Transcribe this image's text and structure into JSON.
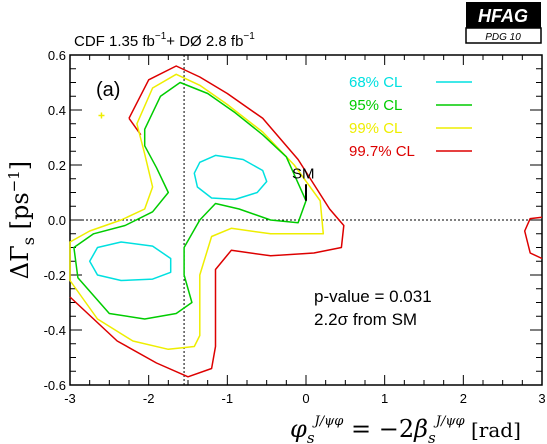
{
  "header": {
    "experiments_line": "CDF  1.35 fb",
    "exp1_sup": "−1",
    "exp2": "+ DØ  2.8 fb",
    "exp2_sup": "−1",
    "logo_title": "HFAG",
    "logo_subtitle": "PDG 10"
  },
  "chart_data": {
    "type": "contour",
    "panel_label": "(a)",
    "xlabel": "φ_s^{J/ψφ} = −2β_s^{J/ψφ} [rad]",
    "ylabel": "ΔΓ_s [ps^−1]",
    "xlim": [
      -3,
      3
    ],
    "ylim": [
      -0.6,
      0.6
    ],
    "xticks": [
      -3,
      -2,
      -1,
      0,
      1,
      2,
      3
    ],
    "xtick_labels": [
      "-3",
      "-2",
      "-1",
      "0",
      "1",
      "2",
      "3"
    ],
    "yticks": [
      -0.6,
      -0.4,
      -0.2,
      0.0,
      0.2,
      0.4,
      0.6
    ],
    "ytick_labels": [
      "-0.6",
      "-0.4",
      "-0.2",
      "0.0",
      "0.2",
      "0.4",
      "0.6"
    ],
    "reference_lines": {
      "x": -1.55,
      "y": 0.0
    },
    "best_fit_marker": {
      "x": -2.6,
      "y": 0.38
    },
    "standard_model": {
      "label": "SM",
      "x": 0.0,
      "y": 0.1,
      "err": 0.03
    },
    "annotation_pvalue": "p-value = 0.031",
    "annotation_sigma": "2.2σ   from SM",
    "legend_position": "top-right",
    "series": [
      {
        "name": "68% CL",
        "color": "#00e0e0",
        "contours": [
          [
            [
              -1.35,
              0.21
            ],
            [
              -1.15,
              0.235
            ],
            [
              -0.8,
              0.22
            ],
            [
              -0.55,
              0.18
            ],
            [
              -0.5,
              0.14
            ],
            [
              -0.62,
              0.1
            ],
            [
              -0.9,
              0.075
            ],
            [
              -1.2,
              0.08
            ],
            [
              -1.38,
              0.12
            ],
            [
              -1.42,
              0.17
            ]
          ],
          [
            [
              -2.75,
              -0.15
            ],
            [
              -2.65,
              -0.1
            ],
            [
              -2.35,
              -0.08
            ],
            [
              -1.95,
              -0.095
            ],
            [
              -1.72,
              -0.14
            ],
            [
              -1.72,
              -0.19
            ],
            [
              -1.95,
              -0.215
            ],
            [
              -2.35,
              -0.22
            ],
            [
              -2.65,
              -0.2
            ]
          ]
        ]
      },
      {
        "name": "95% CL",
        "color": "#00cc00",
        "contours": [
          [
            [
              -2.05,
              0.33
            ],
            [
              -1.85,
              0.45
            ],
            [
              -1.6,
              0.5
            ],
            [
              -1.25,
              0.46
            ],
            [
              -0.9,
              0.39
            ],
            [
              -0.55,
              0.31
            ],
            [
              -0.25,
              0.23
            ],
            [
              0.0,
              0.07
            ],
            [
              -0.1,
              -0.01
            ],
            [
              -0.45,
              0.0
            ],
            [
              -0.85,
              0.04
            ],
            [
              -1.15,
              0.06
            ],
            [
              -1.35,
              0.0
            ],
            [
              -1.55,
              -0.1
            ],
            [
              -1.55,
              -0.2
            ],
            [
              -1.45,
              -0.3
            ],
            [
              -1.65,
              -0.34
            ],
            [
              -2.05,
              -0.36
            ],
            [
              -2.5,
              -0.34
            ],
            [
              -2.9,
              -0.21
            ],
            [
              -2.95,
              -0.1
            ],
            [
              -2.7,
              -0.05
            ],
            [
              -2.3,
              -0.02
            ],
            [
              -1.95,
              0.03
            ],
            [
              -1.75,
              0.1
            ],
            [
              -1.9,
              0.19
            ],
            [
              -2.05,
              0.27
            ]
          ]
        ]
      },
      {
        "name": "99% CL",
        "color": "#eeee00",
        "contours": [
          [
            [
              -2.15,
              0.35
            ],
            [
              -1.95,
              0.48
            ],
            [
              -1.65,
              0.53
            ],
            [
              -1.35,
              0.49
            ],
            [
              -1.0,
              0.42
            ],
            [
              -0.55,
              0.32
            ],
            [
              -0.15,
              0.2
            ],
            [
              0.18,
              0.07
            ],
            [
              0.22,
              -0.05
            ],
            [
              0.05,
              -0.05
            ],
            [
              -0.45,
              -0.05
            ],
            [
              -0.95,
              -0.03
            ],
            [
              -1.2,
              -0.06
            ],
            [
              -1.35,
              -0.2
            ],
            [
              -1.35,
              -0.42
            ],
            [
              -1.42,
              -0.46
            ],
            [
              -1.75,
              -0.47
            ],
            [
              -2.2,
              -0.44
            ],
            [
              -2.65,
              -0.36
            ],
            [
              -3.0,
              -0.22
            ],
            [
              -3.0,
              -0.08
            ],
            [
              -2.75,
              -0.04
            ],
            [
              -2.35,
              0.0
            ],
            [
              -2.05,
              0.04
            ],
            [
              -1.95,
              0.12
            ],
            [
              -2.05,
              0.24
            ]
          ]
        ]
      },
      {
        "name": "99.7% CL",
        "color": "#dd0000",
        "contours": [
          [
            [
              -2.25,
              0.37
            ],
            [
              -2.0,
              0.51
            ],
            [
              -1.65,
              0.56
            ],
            [
              -1.35,
              0.52
            ],
            [
              -1.0,
              0.46
            ],
            [
              -0.55,
              0.37
            ],
            [
              -0.1,
              0.22
            ],
            [
              0.3,
              0.04
            ],
            [
              0.48,
              -0.02
            ],
            [
              0.45,
              -0.1
            ],
            [
              0.1,
              -0.12
            ],
            [
              -0.45,
              -0.13
            ],
            [
              -0.95,
              -0.11
            ],
            [
              -1.15,
              -0.18
            ],
            [
              -1.15,
              -0.46
            ],
            [
              -1.2,
              -0.54
            ],
            [
              -1.5,
              -0.57
            ],
            [
              -1.9,
              -0.52
            ],
            [
              -2.4,
              -0.44
            ],
            [
              -2.85,
              -0.32
            ],
            [
              -3.0,
              -0.28
            ]
          ],
          [
            [
              3.0,
              0.01
            ],
            [
              2.85,
              0.005
            ],
            [
              2.78,
              -0.04
            ],
            [
              2.85,
              -0.12
            ],
            [
              3.0,
              -0.14
            ]
          ],
          [
            [
              -2.1,
              0.31
            ],
            [
              -2.25,
              0.37
            ]
          ]
        ]
      }
    ]
  }
}
